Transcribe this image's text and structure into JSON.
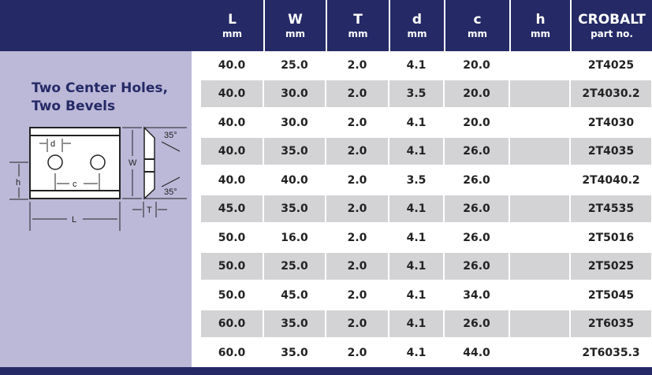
{
  "header": {
    "columns": [
      {
        "name": "L",
        "unit": "mm"
      },
      {
        "name": "W",
        "unit": "mm"
      },
      {
        "name": "T",
        "unit": "mm"
      },
      {
        "name": "d",
        "unit": "mm"
      },
      {
        "name": "c",
        "unit": "mm"
      },
      {
        "name": "h",
        "unit": "mm"
      },
      {
        "name": "CROBALT",
        "unit": "part no."
      }
    ]
  },
  "panel": {
    "title_line1": "Two Center Holes,",
    "title_line2": "Two Bevels",
    "diagram_labels": {
      "d": "d",
      "c": "c",
      "h": "h",
      "L": "L",
      "W": "W",
      "T": "T",
      "angle_top": "35°",
      "angle_bottom": "35°"
    }
  },
  "rows": [
    [
      "40.0",
      "25.0",
      "2.0",
      "4.1",
      "20.0",
      "",
      "2T4025"
    ],
    [
      "40.0",
      "30.0",
      "2.0",
      "3.5",
      "20.0",
      "",
      "2T4030.2"
    ],
    [
      "40.0",
      "30.0",
      "2.0",
      "4.1",
      "20.0",
      "",
      "2T4030"
    ],
    [
      "40.0",
      "35.0",
      "2.0",
      "4.1",
      "26.0",
      "",
      "2T4035"
    ],
    [
      "40.0",
      "40.0",
      "2.0",
      "3.5",
      "26.0",
      "",
      "2T4040.2"
    ],
    [
      "45.0",
      "35.0",
      "2.0",
      "4.1",
      "26.0",
      "",
      "2T4535"
    ],
    [
      "50.0",
      "16.0",
      "2.0",
      "4.1",
      "26.0",
      "",
      "2T5016"
    ],
    [
      "50.0",
      "25.0",
      "2.0",
      "4.1",
      "26.0",
      "",
      "2T5025"
    ],
    [
      "50.0",
      "45.0",
      "2.0",
      "4.1",
      "34.0",
      "",
      "2T5045"
    ],
    [
      "60.0",
      "35.0",
      "2.0",
      "4.1",
      "26.0",
      "",
      "2T6035"
    ],
    [
      "60.0",
      "35.0",
      "2.0",
      "4.1",
      "44.0",
      "",
      "2T6035.3"
    ]
  ]
}
